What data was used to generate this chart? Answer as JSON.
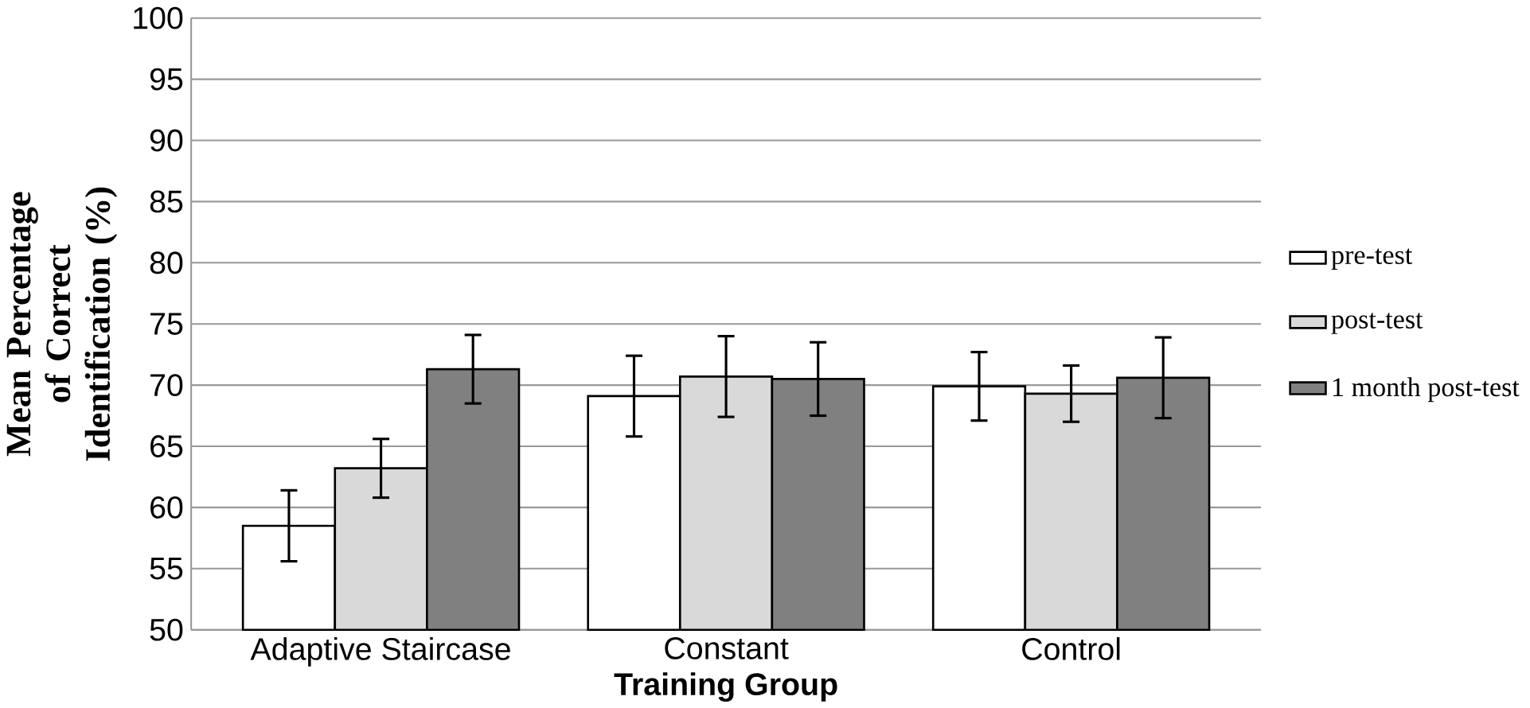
{
  "chart_data": {
    "type": "bar",
    "xlabel": "Training Group",
    "ylabel": "Mean Percentage of Correct Identification (%)",
    "categories": [
      "Adaptive Staircase",
      "Constant",
      "Control"
    ],
    "series": [
      {
        "name": "pre-test",
        "color": "#ffffff",
        "values": [
          58.5,
          69.1,
          69.9
        ],
        "errors": [
          2.9,
          3.3,
          2.8
        ]
      },
      {
        "name": "post-test",
        "color": "#d9d9d9",
        "values": [
          63.2,
          70.7,
          69.3
        ],
        "errors": [
          2.4,
          3.3,
          2.3
        ]
      },
      {
        "name": "1 month post-test",
        "color": "#808080",
        "values": [
          71.3,
          70.5,
          70.6
        ],
        "errors": [
          2.8,
          3.0,
          3.3
        ]
      }
    ],
    "ylim": [
      50,
      100
    ],
    "yticks": [
      50,
      55,
      60,
      65,
      70,
      75,
      80,
      85,
      90,
      95,
      100
    ],
    "grid": "y",
    "legend": "right"
  }
}
